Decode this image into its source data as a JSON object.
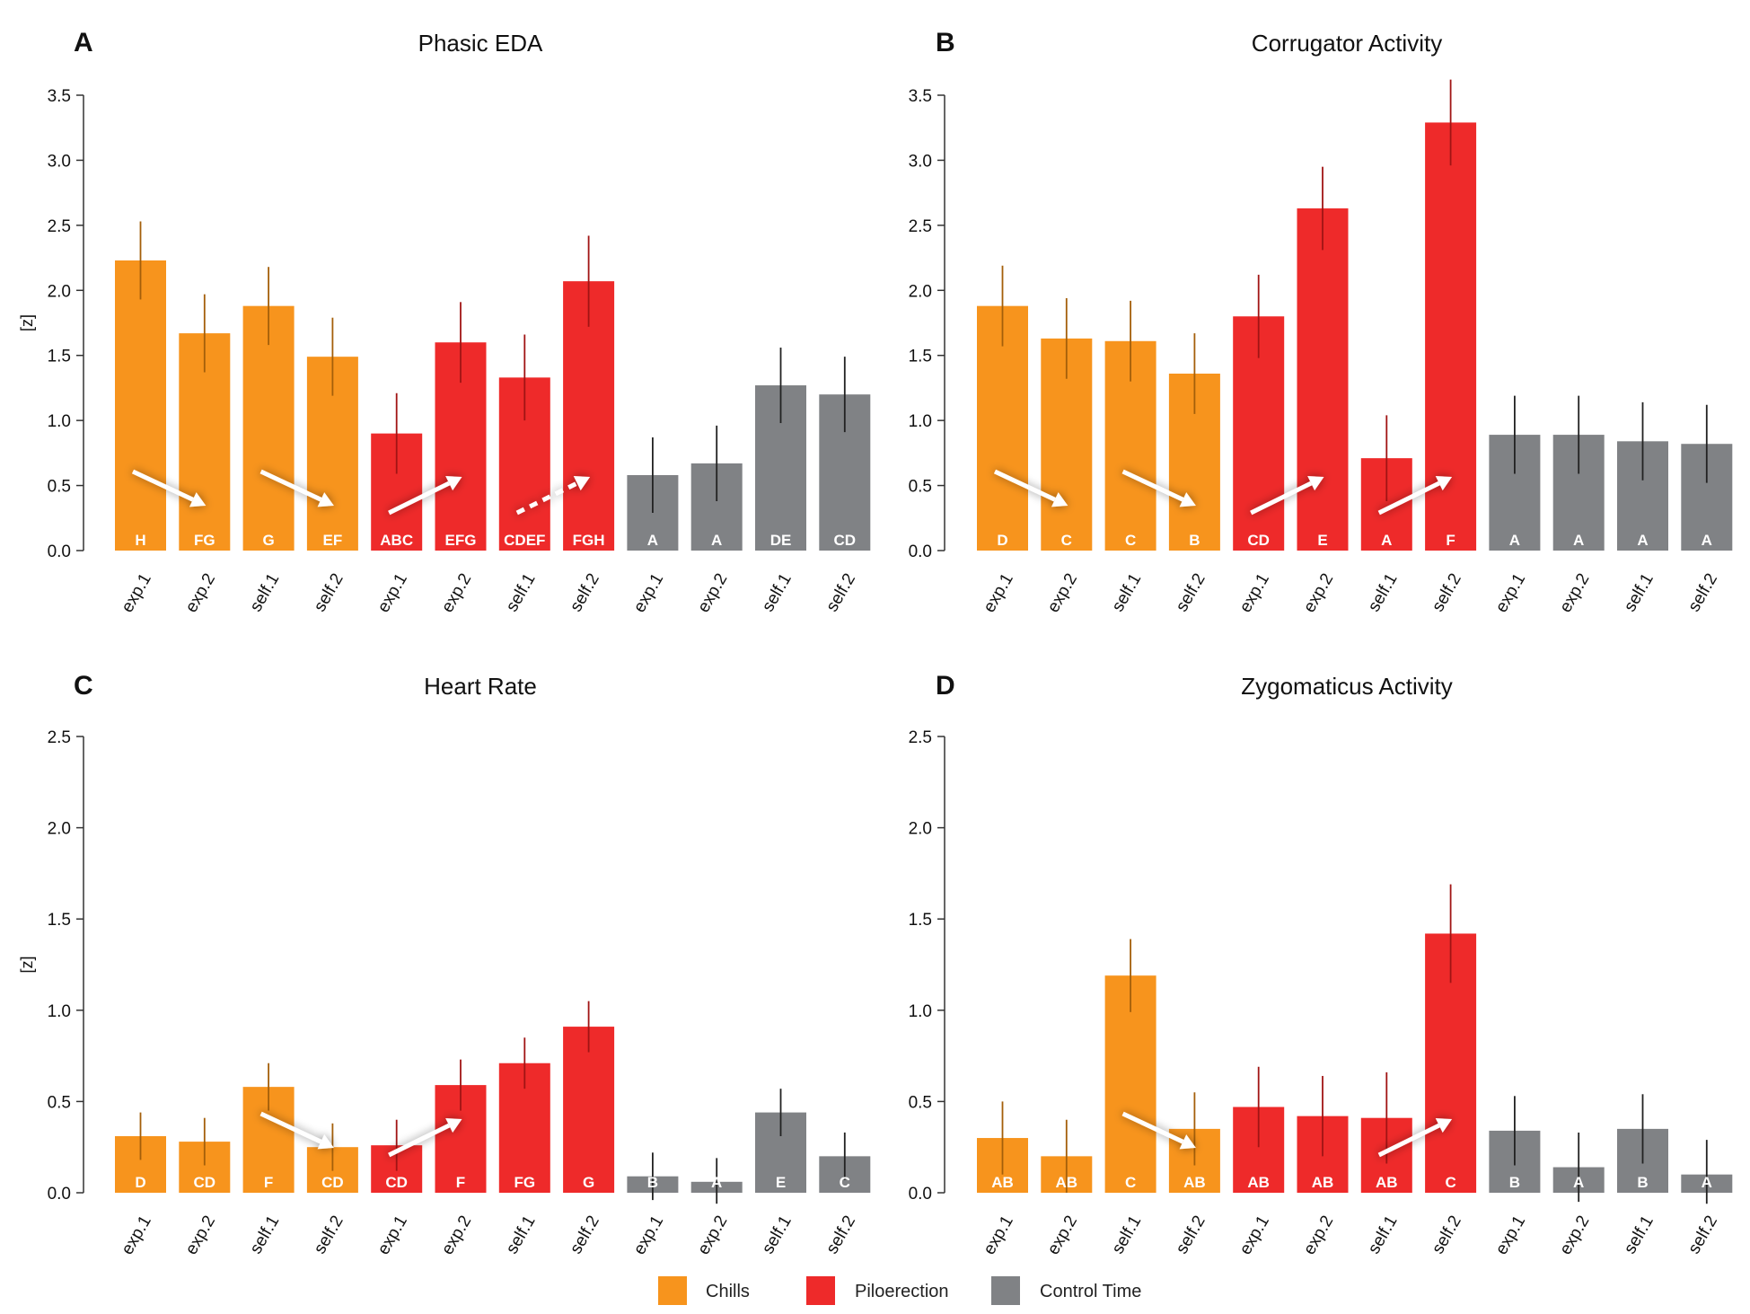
{
  "colors": {
    "chills": "#F7941D",
    "piloerection": "#EE2A2A",
    "control": "#808285",
    "chills_err": "#A45F0A",
    "pilo_err": "#A11414",
    "control_err": "#222222"
  },
  "legend": {
    "items": [
      {
        "label": "Chills",
        "color": "#F7941D"
      },
      {
        "label": "Piloerection",
        "color": "#EE2A2A"
      },
      {
        "label": "Control Time",
        "color": "#808285"
      }
    ]
  },
  "chart_data": [
    {
      "type": "bar",
      "panel": "A",
      "title": "Phasic EDA",
      "ylabel": "[z]",
      "ylim": [
        0,
        3.5
      ],
      "yticks": [
        "0.0",
        "0.5",
        "1.0",
        "1.5",
        "2.0",
        "2.5",
        "3.0",
        "3.5"
      ],
      "categories": [
        "exp.1",
        "exp.2",
        "self.1",
        "self.2",
        "exp.1",
        "exp.2",
        "self.1",
        "self.2",
        "exp.1",
        "exp.2",
        "self.1",
        "self.2"
      ],
      "groups": [
        "chills",
        "chills",
        "chills",
        "chills",
        "piloerection",
        "piloerection",
        "piloerection",
        "piloerection",
        "control",
        "control",
        "control",
        "control"
      ],
      "values": [
        2.23,
        1.67,
        1.88,
        1.49,
        0.9,
        1.6,
        1.33,
        2.07,
        0.58,
        0.67,
        1.27,
        1.2
      ],
      "errors": [
        0.3,
        0.3,
        0.3,
        0.3,
        0.31,
        0.31,
        0.33,
        0.35,
        0.29,
        0.29,
        0.29,
        0.29
      ],
      "letters": [
        "H",
        "FG",
        "G",
        "EF",
        "ABC",
        "EFG",
        "CDEF",
        "FGH",
        "A",
        "A",
        "DE",
        "CD"
      ],
      "arrows": [
        {
          "from": 0,
          "to": 1,
          "dir": "down",
          "dashed": false
        },
        {
          "from": 2,
          "to": 3,
          "dir": "down",
          "dashed": false
        },
        {
          "from": 4,
          "to": 5,
          "dir": "up",
          "dashed": false
        },
        {
          "from": 6,
          "to": 7,
          "dir": "up",
          "dashed": true
        }
      ]
    },
    {
      "type": "bar",
      "panel": "B",
      "title": "Corrugator Activity",
      "ylabel": "",
      "ylim": [
        0,
        3.5
      ],
      "yticks": [
        "0.0",
        "0.5",
        "1.0",
        "1.5",
        "2.0",
        "2.5",
        "3.0",
        "3.5"
      ],
      "categories": [
        "exp.1",
        "exp.2",
        "self.1",
        "self.2",
        "exp.1",
        "exp.2",
        "self.1",
        "self.2",
        "exp.1",
        "exp.2",
        "self.1",
        "self.2"
      ],
      "groups": [
        "chills",
        "chills",
        "chills",
        "chills",
        "piloerection",
        "piloerection",
        "piloerection",
        "piloerection",
        "control",
        "control",
        "control",
        "control"
      ],
      "values": [
        1.88,
        1.63,
        1.61,
        1.36,
        1.8,
        2.63,
        0.71,
        3.29,
        0.89,
        0.89,
        0.84,
        0.82
      ],
      "errors": [
        0.31,
        0.31,
        0.31,
        0.31,
        0.32,
        0.32,
        0.33,
        0.33,
        0.3,
        0.3,
        0.3,
        0.3
      ],
      "letters": [
        "D",
        "C",
        "C",
        "B",
        "CD",
        "E",
        "A",
        "F",
        "A",
        "A",
        "A",
        "A"
      ],
      "arrows": [
        {
          "from": 0,
          "to": 1,
          "dir": "down",
          "dashed": false
        },
        {
          "from": 2,
          "to": 3,
          "dir": "down",
          "dashed": false
        },
        {
          "from": 4,
          "to": 5,
          "dir": "up",
          "dashed": false
        },
        {
          "from": 6,
          "to": 7,
          "dir": "up",
          "dashed": false
        }
      ]
    },
    {
      "type": "bar",
      "panel": "C",
      "title": "Heart Rate",
      "ylabel": "[z]",
      "ylim": [
        0,
        2.5
      ],
      "yticks": [
        "0.0",
        "0.5",
        "1.0",
        "1.5",
        "2.0",
        "2.5"
      ],
      "categories": [
        "exp.1",
        "exp.2",
        "self.1",
        "self.2",
        "exp.1",
        "exp.2",
        "self.1",
        "self.2",
        "exp.1",
        "exp.2",
        "self.1",
        "self.2"
      ],
      "groups": [
        "chills",
        "chills",
        "chills",
        "chills",
        "piloerection",
        "piloerection",
        "piloerection",
        "piloerection",
        "control",
        "control",
        "control",
        "control"
      ],
      "values": [
        0.31,
        0.28,
        0.58,
        0.25,
        0.26,
        0.59,
        0.71,
        0.91,
        0.09,
        0.06,
        0.44,
        0.2
      ],
      "errors": [
        0.13,
        0.13,
        0.13,
        0.13,
        0.14,
        0.14,
        0.14,
        0.14,
        0.13,
        0.13,
        0.13,
        0.13
      ],
      "letters": [
        "D",
        "CD",
        "F",
        "CD",
        "CD",
        "F",
        "FG",
        "G",
        "B",
        "A",
        "E",
        "C"
      ],
      "arrows": [
        {
          "from": 2,
          "to": 3,
          "dir": "down",
          "dashed": false
        },
        {
          "from": 4,
          "to": 5,
          "dir": "up",
          "dashed": false
        }
      ]
    },
    {
      "type": "bar",
      "panel": "D",
      "title": "Zygomaticus Activity",
      "ylabel": "",
      "ylim": [
        0,
        2.5
      ],
      "yticks": [
        "0.0",
        "0.5",
        "1.0",
        "1.5",
        "2.0",
        "2.5"
      ],
      "categories": [
        "exp.1",
        "exp.2",
        "self.1",
        "self.2",
        "exp.1",
        "exp.2",
        "self.1",
        "self.2",
        "exp.1",
        "exp.2",
        "self.1",
        "self.2"
      ],
      "groups": [
        "chills",
        "chills",
        "chills",
        "chills",
        "piloerection",
        "piloerection",
        "piloerection",
        "piloerection",
        "control",
        "control",
        "control",
        "control"
      ],
      "values": [
        0.3,
        0.2,
        1.19,
        0.35,
        0.47,
        0.42,
        0.41,
        1.42,
        0.34,
        0.14,
        0.35,
        0.1
      ],
      "errors": [
        0.2,
        0.2,
        0.2,
        0.2,
        0.22,
        0.22,
        0.25,
        0.27,
        0.19,
        0.19,
        0.19,
        0.19
      ],
      "letters": [
        "AB",
        "AB",
        "C",
        "AB",
        "AB",
        "AB",
        "AB",
        "C",
        "B",
        "A",
        "B",
        "A"
      ],
      "arrows": [
        {
          "from": 2,
          "to": 3,
          "dir": "down",
          "dashed": false
        },
        {
          "from": 6,
          "to": 7,
          "dir": "up",
          "dashed": false
        }
      ]
    }
  ]
}
